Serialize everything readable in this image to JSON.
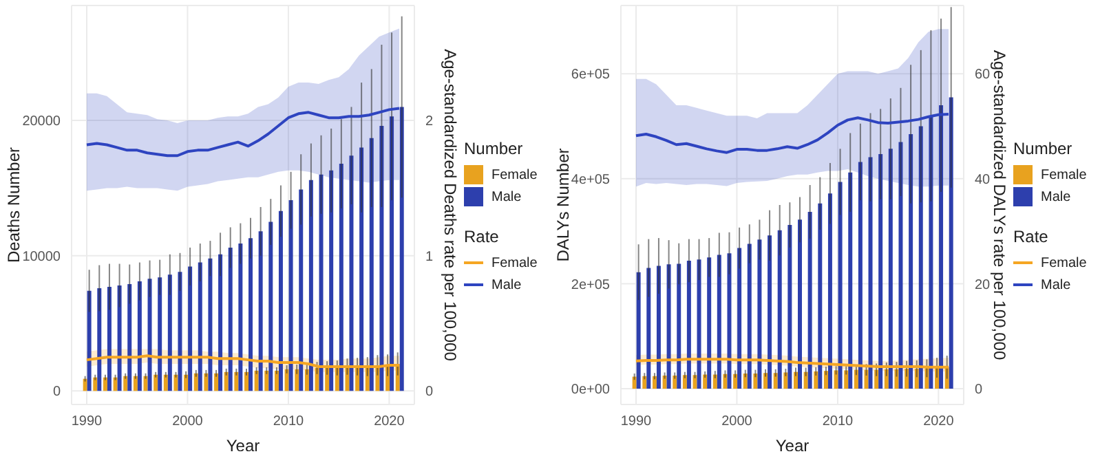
{
  "chart_data": [
    {
      "type": "bar",
      "xlabel": "Year",
      "ylabel": "Deaths Number",
      "y2label": "Age-standardized Deaths rate per 100,000",
      "legend_title": [
        "Number",
        "Rate"
      ],
      "legend": "right",
      "grid": true,
      "x": [
        1990,
        1991,
        1992,
        1993,
        1994,
        1995,
        1996,
        1997,
        1998,
        1999,
        2000,
        2001,
        2002,
        2003,
        2004,
        2005,
        2006,
        2007,
        2008,
        2009,
        2010,
        2011,
        2012,
        2013,
        2014,
        2015,
        2016,
        2017,
        2018,
        2019,
        2020,
        2021
      ],
      "xlim": [
        1988.5,
        2022.5
      ],
      "xticks": [
        1990,
        2000,
        2010,
        2020
      ],
      "ylim": [
        -1000,
        28500
      ],
      "yticks": [
        0,
        10000,
        20000
      ],
      "y2lim": [
        -0.1,
        2.85
      ],
      "y2ticks": [
        0,
        1,
        2
      ],
      "series": [
        {
          "name": "Female",
          "color": "#e8a21f",
          "values": [
            900,
            1000,
            1000,
            1000,
            1100,
            1100,
            1100,
            1200,
            1200,
            1200,
            1200,
            1300,
            1300,
            1300,
            1400,
            1400,
            1400,
            1500,
            1500,
            1500,
            1600,
            1600,
            1600,
            1700,
            1700,
            1700,
            1800,
            1800,
            1800,
            1900,
            1900,
            2000
          ],
          "errors": [
            200,
            200,
            200,
            200,
            200,
            200,
            200,
            200,
            200,
            200,
            250,
            250,
            250,
            250,
            250,
            250,
            250,
            250,
            250,
            250,
            300,
            350,
            400,
            450,
            500,
            550,
            600,
            650,
            700,
            750,
            800,
            850
          ]
        },
        {
          "name": "Male",
          "color": "#2d3fad",
          "values": [
            7400,
            7600,
            7700,
            7800,
            7900,
            8100,
            8300,
            8400,
            8600,
            8800,
            9200,
            9500,
            9800,
            10100,
            10600,
            10900,
            11300,
            11800,
            12500,
            13300,
            14100,
            14900,
            15600,
            16000,
            16300,
            16800,
            17400,
            18000,
            18700,
            19600,
            20300,
            21000
          ],
          "errors": [
            1560,
            1700,
            1700,
            1600,
            1450,
            1400,
            1350,
            1300,
            1500,
            1400,
            1400,
            1400,
            1300,
            1600,
            1500,
            1500,
            1500,
            1800,
            1700,
            1900,
            2100,
            2600,
            2700,
            2900,
            3100,
            3300,
            3600,
            4800,
            5100,
            6000,
            6200,
            6700
          ]
        },
        {
          "name": "Female",
          "type": "line",
          "axis": "y2",
          "color": "#f5a623",
          "values": [
            0.23,
            0.24,
            0.25,
            0.25,
            0.25,
            0.25,
            0.26,
            0.25,
            0.25,
            0.25,
            0.25,
            0.25,
            0.25,
            0.24,
            0.24,
            0.24,
            0.23,
            0.22,
            0.22,
            0.21,
            0.21,
            0.21,
            0.2,
            0.18,
            0.18,
            0.18,
            0.18,
            0.18,
            0.18,
            0.18,
            0.19,
            0.19
          ],
          "lower": [
            0.18,
            0.19,
            0.2,
            0.2,
            0.2,
            0.2,
            0.21,
            0.2,
            0.2,
            0.2,
            0.2,
            0.2,
            0.2,
            0.19,
            0.19,
            0.19,
            0.18,
            0.17,
            0.17,
            0.16,
            0.16,
            0.16,
            0.15,
            0.14,
            0.14,
            0.14,
            0.14,
            0.14,
            0.14,
            0.14,
            0.15,
            0.15
          ],
          "upper": [
            0.29,
            0.3,
            0.31,
            0.31,
            0.31,
            0.31,
            0.31,
            0.31,
            0.3,
            0.3,
            0.3,
            0.3,
            0.29,
            0.29,
            0.28,
            0.28,
            0.27,
            0.26,
            0.26,
            0.25,
            0.25,
            0.25,
            0.24,
            0.23,
            0.23,
            0.23,
            0.24,
            0.24,
            0.24,
            0.25,
            0.26,
            0.26
          ]
        },
        {
          "name": "Male",
          "type": "line",
          "axis": "y2",
          "color": "#2e44c0",
          "values": [
            1.82,
            1.83,
            1.82,
            1.8,
            1.78,
            1.78,
            1.76,
            1.75,
            1.74,
            1.74,
            1.77,
            1.78,
            1.78,
            1.8,
            1.82,
            1.84,
            1.81,
            1.85,
            1.9,
            1.96,
            2.02,
            2.05,
            2.06,
            2.04,
            2.02,
            2.02,
            2.03,
            2.03,
            2.04,
            2.06,
            2.08,
            2.09
          ],
          "lower": [
            1.48,
            1.49,
            1.5,
            1.5,
            1.51,
            1.5,
            1.5,
            1.5,
            1.49,
            1.48,
            1.51,
            1.52,
            1.53,
            1.55,
            1.56,
            1.57,
            1.58,
            1.58,
            1.6,
            1.62,
            1.63,
            1.63,
            1.62,
            1.6,
            1.58,
            1.57,
            1.56,
            1.55,
            1.54,
            1.55,
            1.56,
            1.56
          ],
          "upper": [
            2.2,
            2.2,
            2.18,
            2.12,
            2.06,
            2.05,
            2.04,
            2.01,
            2.0,
            1.98,
            2.0,
            2.0,
            2.0,
            2.02,
            2.03,
            2.03,
            2.05,
            2.1,
            2.12,
            2.17,
            2.25,
            2.28,
            2.28,
            2.27,
            2.3,
            2.32,
            2.38,
            2.48,
            2.55,
            2.62,
            2.65,
            2.68
          ]
        }
      ]
    },
    {
      "type": "bar",
      "xlabel": "Year",
      "ylabel": "DALYs Number",
      "y2label": "Age-standardized DALYs rate per 100,000",
      "legend_title": [
        "Number",
        "Rate"
      ],
      "legend": "right",
      "grid": true,
      "x": [
        1990,
        1991,
        1992,
        1993,
        1994,
        1995,
        1996,
        1997,
        1998,
        1999,
        2000,
        2001,
        2002,
        2003,
        2004,
        2005,
        2006,
        2007,
        2008,
        2009,
        2010,
        2011,
        2012,
        2013,
        2014,
        2015,
        2016,
        2017,
        2018,
        2019,
        2020,
        2021
      ],
      "xlim": [
        1988.5,
        2022.5
      ],
      "xticks": [
        1990,
        2000,
        2010,
        2020
      ],
      "ylim": [
        -30000,
        730000
      ],
      "yticks": [
        {
          "value": 0,
          "label": "0e+00"
        },
        {
          "value": 200000,
          "label": "2e+05"
        },
        {
          "value": 400000,
          "label": "4e+05"
        },
        {
          "value": 600000,
          "label": "6e+05"
        }
      ],
      "y2lim": [
        -3,
        73
      ],
      "y2ticks": [
        0,
        20,
        40,
        60
      ],
      "series": [
        {
          "name": "Female",
          "color": "#e8a21f",
          "values": [
            23000,
            24000,
            24000,
            25000,
            25000,
            26000,
            26000,
            27000,
            27000,
            28000,
            28000,
            29000,
            29000,
            30000,
            30000,
            31000,
            32000,
            32000,
            33000,
            34000,
            35000,
            35000,
            36000,
            36000,
            36000,
            37000,
            37000,
            38000,
            38000,
            39000,
            40000,
            41000
          ],
          "errors": [
            6000,
            6000,
            6000,
            6000,
            6000,
            6000,
            6000,
            6000,
            7000,
            7000,
            7000,
            7000,
            7000,
            7000,
            7000,
            7000,
            8000,
            8000,
            8000,
            8000,
            8000,
            8000,
            10000,
            11000,
            12000,
            13000,
            14000,
            15000,
            16000,
            17000,
            19000,
            22000
          ]
        },
        {
          "name": "Male",
          "color": "#2d3fad",
          "values": [
            222000,
            230000,
            234000,
            237000,
            238000,
            244000,
            246000,
            250000,
            255000,
            258000,
            268000,
            276000,
            284000,
            292000,
            302000,
            312000,
            322000,
            337000,
            353000,
            372000,
            394000,
            412000,
            432000,
            441000,
            447000,
            457000,
            470000,
            485000,
            500000,
            520000,
            540000,
            555000
          ],
          "errors": [
            53000,
            55000,
            53000,
            46000,
            39000,
            41000,
            39000,
            37000,
            42000,
            40000,
            39000,
            37000,
            38000,
            48000,
            48000,
            43000,
            43000,
            51000,
            50000,
            58000,
            63000,
            75000,
            73000,
            84000,
            86000,
            96000,
            103000,
            132000,
            145000,
            163000,
            165000,
            172000
          ]
        },
        {
          "name": "Female",
          "type": "line",
          "axis": "y2",
          "color": "#f5a623",
          "values": [
            5.3,
            5.4,
            5.4,
            5.5,
            5.5,
            5.6,
            5.6,
            5.6,
            5.6,
            5.6,
            5.5,
            5.5,
            5.5,
            5.4,
            5.3,
            5.2,
            5.0,
            4.9,
            4.8,
            4.7,
            4.6,
            4.5,
            4.4,
            4.3,
            4.2,
            4.2,
            4.2,
            4.2,
            4.2,
            4.1,
            4.1,
            4.1
          ],
          "lower": [
            4.5,
            4.6,
            4.6,
            4.7,
            4.7,
            4.8,
            4.8,
            4.8,
            4.8,
            4.8,
            4.7,
            4.7,
            4.7,
            4.6,
            4.5,
            4.4,
            4.2,
            4.1,
            4.0,
            3.9,
            3.8,
            3.7,
            3.6,
            3.5,
            3.4,
            3.4,
            3.4,
            3.4,
            3.4,
            3.3,
            3.3,
            3.3
          ],
          "upper": [
            6.4,
            6.5,
            6.5,
            6.6,
            6.6,
            6.7,
            6.7,
            6.7,
            6.7,
            6.7,
            6.6,
            6.6,
            6.6,
            6.5,
            6.4,
            6.3,
            6.1,
            6.0,
            5.9,
            5.8,
            5.7,
            5.6,
            5.5,
            5.4,
            5.3,
            5.3,
            5.4,
            5.5,
            5.6,
            5.7,
            5.8,
            5.9
          ]
        },
        {
          "name": "Male",
          "type": "line",
          "axis": "y2",
          "color": "#2e44c0",
          "values": [
            48.2,
            48.5,
            48,
            47.3,
            46.5,
            46.7,
            46.2,
            45.7,
            45.3,
            45,
            45.6,
            45.6,
            45.4,
            45.4,
            45.7,
            46.1,
            45.8,
            46.5,
            47.4,
            48.7,
            50.2,
            51.2,
            51.6,
            51.2,
            50.7,
            50.6,
            50.8,
            51,
            51.3,
            51.8,
            52.2,
            52.3
          ],
          "lower": [
            38.5,
            39.2,
            39,
            39.2,
            39,
            38.8,
            39,
            39,
            38.8,
            38.6,
            39.2,
            39.4,
            39.5,
            39.6,
            40,
            40.5,
            40.8,
            40.8,
            41.2,
            41.5,
            41.5,
            41.8,
            41.2,
            40.5,
            40,
            39.6,
            39.2,
            38.8,
            38.5,
            38.5,
            38.7,
            38.7
          ],
          "upper": [
            59,
            59,
            58,
            56,
            54,
            54,
            53.5,
            53,
            52.5,
            52,
            52,
            52,
            51.5,
            52.5,
            52.5,
            52.5,
            52.5,
            54,
            56,
            58,
            60,
            60.5,
            60.5,
            60.5,
            60,
            60.5,
            61,
            63,
            66,
            68,
            68.5,
            68.5
          ]
        }
      ]
    }
  ]
}
